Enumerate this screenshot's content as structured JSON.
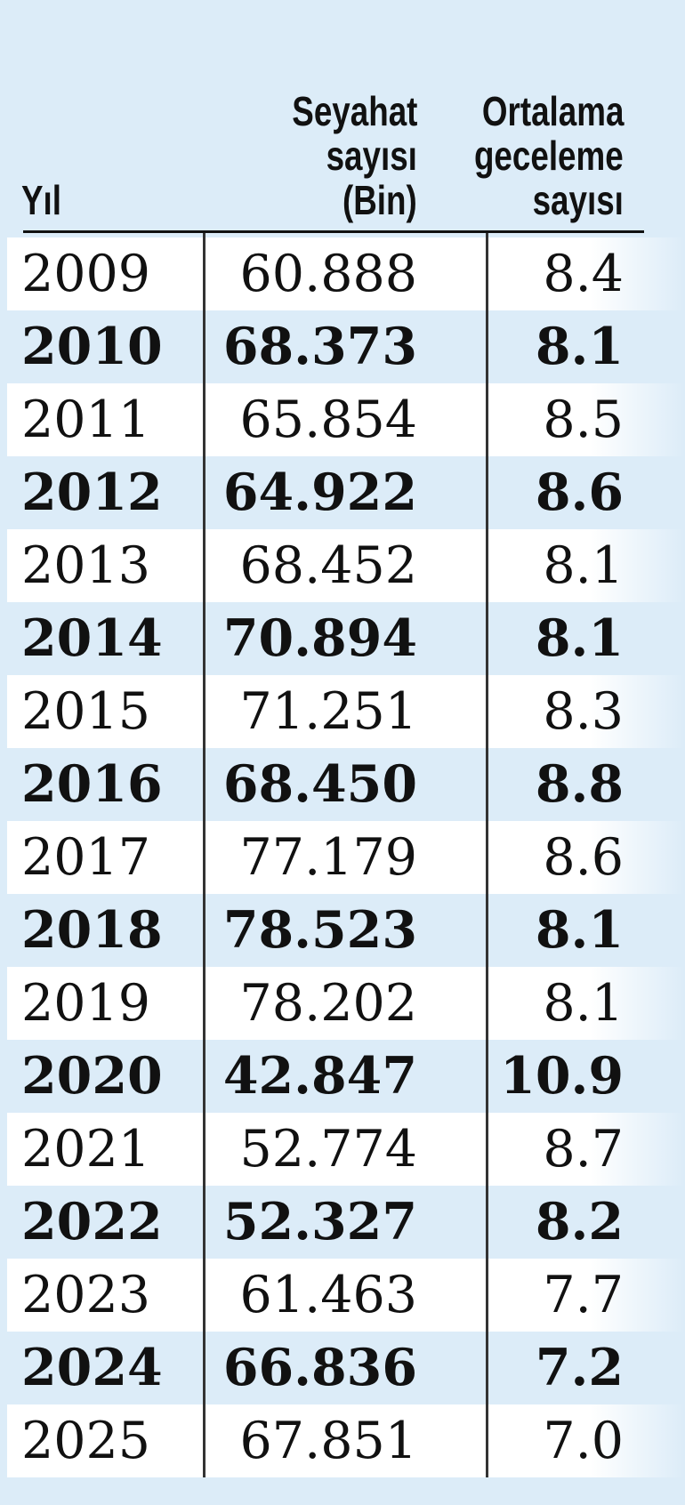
{
  "table": {
    "header": [
      [
        "Yıl"
      ],
      [
        "Seyahat",
        "sayısı",
        "(Bin)"
      ],
      [
        "Ortalama",
        "geceleme",
        "sayısı"
      ]
    ],
    "rows": [
      [
        "2009",
        "60.888",
        "8.4"
      ],
      [
        "2010",
        "68.373",
        "8.1"
      ],
      [
        "2011",
        "65.854",
        "8.5"
      ],
      [
        "2012",
        "64.922",
        "8.6"
      ],
      [
        "2013",
        "68.452",
        "8.1"
      ],
      [
        "2014",
        "70.894",
        "8.1"
      ],
      [
        "2015",
        "71.251",
        "8.3"
      ],
      [
        "2016",
        "68.450",
        "8.8"
      ],
      [
        "2017",
        "77.179",
        "8.6"
      ],
      [
        "2018",
        "78.523",
        "8.1"
      ],
      [
        "2019",
        "78.202",
        "8.1"
      ],
      [
        "2020",
        "42.847",
        "10.9"
      ],
      [
        "2021",
        "52.774",
        "8.7"
      ],
      [
        "2022",
        "52.327",
        "8.2"
      ],
      [
        "2023",
        "61.463",
        "7.7"
      ],
      [
        "2024",
        "66.836",
        "7.2"
      ],
      [
        "2025",
        "67.851",
        "7.0"
      ]
    ]
  }
}
